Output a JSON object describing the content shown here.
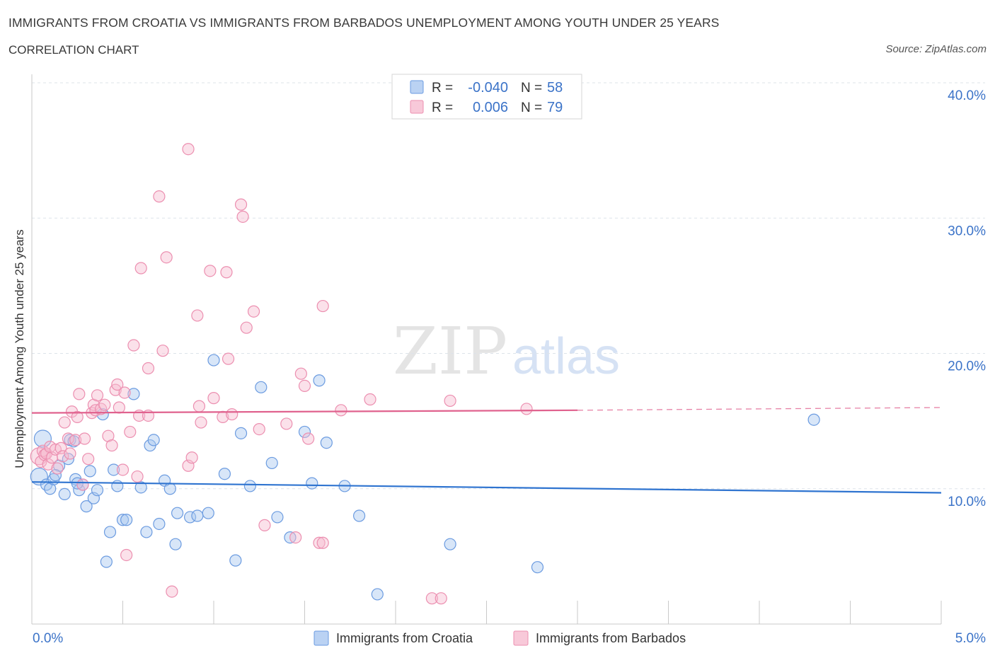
{
  "header": {
    "title": "IMMIGRANTS FROM CROATIA VS IMMIGRANTS FROM BARBADOS UNEMPLOYMENT AMONG YOUTH UNDER 25 YEARS",
    "subtitle": "CORRELATION CHART",
    "source": "Source: ZipAtlas.com"
  },
  "stats_box": {
    "rows": [
      {
        "r_label": "R =",
        "r_value": "-0.040",
        "n_label": "N =",
        "n_value": "58"
      },
      {
        "r_label": "R =",
        "r_value": "0.006",
        "n_label": "N =",
        "n_value": "79"
      }
    ]
  },
  "watermark": {
    "zip": "ZIP",
    "atlas": "atlas"
  },
  "colors": {
    "croatia_fill": "#a9c7f0",
    "croatia_stroke": "#6b9be0",
    "croatia_line": "#2f74d0",
    "barbados_fill": "#f6bcd0",
    "barbados_stroke": "#ec8fb0",
    "barbados_line": "#e0628e",
    "axis_text": "#3b73c8",
    "grid": "#dde3ea"
  },
  "chart_data": {
    "type": "scatter",
    "title": "IMMIGRANTS FROM CROATIA VS IMMIGRANTS FROM BARBADOS UNEMPLOYMENT AMONG YOUTH UNDER 25 YEARS",
    "xlabel": "",
    "ylabel": "Unemployment Among Youth under 25 years",
    "xlim": [
      0,
      5
    ],
    "ylim": [
      0,
      40
    ],
    "x_tick_labels": [
      "0.0%",
      "5.0%"
    ],
    "y_tick_labels": [
      "10.0%",
      "20.0%",
      "30.0%",
      "40.0%"
    ],
    "y_ticks": [
      10,
      20,
      30,
      40
    ],
    "grid": true,
    "legend_position": "bottom",
    "series": [
      {
        "name": "Immigrants from Croatia",
        "R": -0.04,
        "N": 58,
        "trend": {
          "x": [
            0,
            5
          ],
          "y": [
            10.5,
            9.7
          ]
        },
        "points": [
          {
            "x": 0.04,
            "y": 10.9,
            "big": true
          },
          {
            "x": 0.06,
            "y": 13.7,
            "big": true
          },
          {
            "x": 0.08,
            "y": 10.3
          },
          {
            "x": 0.1,
            "y": 10.0
          },
          {
            "x": 0.12,
            "y": 10.7
          },
          {
            "x": 0.15,
            "y": 11.7
          },
          {
            "x": 0.18,
            "y": 9.6
          },
          {
            "x": 0.2,
            "y": 12.2
          },
          {
            "x": 0.21,
            "y": 13.6
          },
          {
            "x": 0.23,
            "y": 13.5
          },
          {
            "x": 0.24,
            "y": 10.7
          },
          {
            "x": 0.26,
            "y": 9.9
          },
          {
            "x": 0.28,
            "y": 10.3
          },
          {
            "x": 0.3,
            "y": 8.7
          },
          {
            "x": 0.32,
            "y": 11.3
          },
          {
            "x": 0.34,
            "y": 9.3
          },
          {
            "x": 0.36,
            "y": 9.9
          },
          {
            "x": 0.39,
            "y": 15.5
          },
          {
            "x": 0.41,
            "y": 4.6
          },
          {
            "x": 0.43,
            "y": 6.8
          },
          {
            "x": 0.45,
            "y": 11.4
          },
          {
            "x": 0.47,
            "y": 10.2
          },
          {
            "x": 0.5,
            "y": 7.7
          },
          {
            "x": 0.52,
            "y": 7.7
          },
          {
            "x": 0.56,
            "y": 17.0
          },
          {
            "x": 0.6,
            "y": 10.1
          },
          {
            "x": 0.63,
            "y": 6.8
          },
          {
            "x": 0.65,
            "y": 13.2
          },
          {
            "x": 0.67,
            "y": 13.6
          },
          {
            "x": 0.7,
            "y": 7.4
          },
          {
            "x": 0.73,
            "y": 10.6
          },
          {
            "x": 0.76,
            "y": 10.0
          },
          {
            "x": 0.79,
            "y": 5.9
          },
          {
            "x": 0.8,
            "y": 8.2
          },
          {
            "x": 0.87,
            "y": 7.9
          },
          {
            "x": 0.91,
            "y": 8.0
          },
          {
            "x": 0.97,
            "y": 8.2
          },
          {
            "x": 1.0,
            "y": 19.5
          },
          {
            "x": 1.06,
            "y": 11.1
          },
          {
            "x": 1.12,
            "y": 4.7
          },
          {
            "x": 1.15,
            "y": 14.1
          },
          {
            "x": 1.2,
            "y": 10.2
          },
          {
            "x": 1.26,
            "y": 17.5
          },
          {
            "x": 1.32,
            "y": 11.9
          },
          {
            "x": 1.35,
            "y": 7.9
          },
          {
            "x": 1.42,
            "y": 6.4
          },
          {
            "x": 1.5,
            "y": 14.2
          },
          {
            "x": 1.54,
            "y": 10.4
          },
          {
            "x": 1.58,
            "y": 18.0
          },
          {
            "x": 1.62,
            "y": 13.4
          },
          {
            "x": 1.72,
            "y": 10.2
          },
          {
            "x": 1.8,
            "y": 8.0
          },
          {
            "x": 1.9,
            "y": 2.2
          },
          {
            "x": 2.3,
            "y": 5.9
          },
          {
            "x": 2.78,
            "y": 4.2
          },
          {
            "x": 4.3,
            "y": 15.1
          },
          {
            "x": 0.25,
            "y": 10.4
          },
          {
            "x": 0.13,
            "y": 11.0
          }
        ]
      },
      {
        "name": "Immigrants from Barbados",
        "R": 0.006,
        "N": 79,
        "trend": {
          "x": [
            0,
            3.0
          ],
          "y": [
            15.6,
            15.8
          ]
        },
        "trend_dashed": {
          "x": [
            3.0,
            5.0
          ],
          "y": [
            15.8,
            16.0
          ]
        },
        "points": [
          {
            "x": 0.04,
            "y": 12.4,
            "big": true
          },
          {
            "x": 0.05,
            "y": 12.0
          },
          {
            "x": 0.06,
            "y": 12.8
          },
          {
            "x": 0.07,
            "y": 12.5
          },
          {
            "x": 0.08,
            "y": 12.6
          },
          {
            "x": 0.09,
            "y": 11.8
          },
          {
            "x": 0.1,
            "y": 13.1
          },
          {
            "x": 0.11,
            "y": 12.3
          },
          {
            "x": 0.13,
            "y": 12.9
          },
          {
            "x": 0.14,
            "y": 11.5
          },
          {
            "x": 0.16,
            "y": 13.0
          },
          {
            "x": 0.17,
            "y": 12.4
          },
          {
            "x": 0.18,
            "y": 14.9
          },
          {
            "x": 0.2,
            "y": 13.7
          },
          {
            "x": 0.21,
            "y": 12.6
          },
          {
            "x": 0.22,
            "y": 15.7
          },
          {
            "x": 0.24,
            "y": 13.6
          },
          {
            "x": 0.25,
            "y": 15.3
          },
          {
            "x": 0.26,
            "y": 17.0
          },
          {
            "x": 0.28,
            "y": 10.3
          },
          {
            "x": 0.29,
            "y": 13.7
          },
          {
            "x": 0.31,
            "y": 12.2
          },
          {
            "x": 0.33,
            "y": 15.6
          },
          {
            "x": 0.34,
            "y": 16.2
          },
          {
            "x": 0.35,
            "y": 15.8
          },
          {
            "x": 0.36,
            "y": 16.9
          },
          {
            "x": 0.38,
            "y": 15.9
          },
          {
            "x": 0.4,
            "y": 16.2
          },
          {
            "x": 0.42,
            "y": 13.9
          },
          {
            "x": 0.44,
            "y": 13.2
          },
          {
            "x": 0.46,
            "y": 17.3
          },
          {
            "x": 0.47,
            "y": 17.7
          },
          {
            "x": 0.48,
            "y": 16.0
          },
          {
            "x": 0.5,
            "y": 11.4
          },
          {
            "x": 0.51,
            "y": 17.1
          },
          {
            "x": 0.52,
            "y": 5.1
          },
          {
            "x": 0.54,
            "y": 14.2
          },
          {
            "x": 0.56,
            "y": 20.6
          },
          {
            "x": 0.58,
            "y": 10.9
          },
          {
            "x": 0.59,
            "y": 15.4
          },
          {
            "x": 0.6,
            "y": 26.3
          },
          {
            "x": 0.64,
            "y": 18.9
          },
          {
            "x": 0.64,
            "y": 15.4
          },
          {
            "x": 0.7,
            "y": 31.6
          },
          {
            "x": 0.72,
            "y": 20.2
          },
          {
            "x": 0.74,
            "y": 27.1
          },
          {
            "x": 0.77,
            "y": 2.4
          },
          {
            "x": 0.86,
            "y": 35.1
          },
          {
            "x": 0.86,
            "y": 11.7
          },
          {
            "x": 0.88,
            "y": 12.3
          },
          {
            "x": 0.91,
            "y": 22.8
          },
          {
            "x": 0.92,
            "y": 16.1
          },
          {
            "x": 0.93,
            "y": 14.9
          },
          {
            "x": 0.98,
            "y": 26.1
          },
          {
            "x": 1.0,
            "y": 16.7
          },
          {
            "x": 1.05,
            "y": 15.3
          },
          {
            "x": 1.07,
            "y": 26.0
          },
          {
            "x": 1.08,
            "y": 19.6
          },
          {
            "x": 1.1,
            "y": 15.5
          },
          {
            "x": 1.15,
            "y": 31.0
          },
          {
            "x": 1.16,
            "y": 30.1
          },
          {
            "x": 1.18,
            "y": 21.9
          },
          {
            "x": 1.22,
            "y": 23.1
          },
          {
            "x": 1.25,
            "y": 14.4
          },
          {
            "x": 1.28,
            "y": 7.3
          },
          {
            "x": 1.4,
            "y": 14.8
          },
          {
            "x": 1.45,
            "y": 6.4
          },
          {
            "x": 1.48,
            "y": 18.5
          },
          {
            "x": 1.5,
            "y": 17.6
          },
          {
            "x": 1.52,
            "y": 13.7
          },
          {
            "x": 1.58,
            "y": 6.0
          },
          {
            "x": 1.6,
            "y": 6.0
          },
          {
            "x": 1.6,
            "y": 23.5
          },
          {
            "x": 1.7,
            "y": 15.8
          },
          {
            "x": 1.86,
            "y": 16.6
          },
          {
            "x": 2.2,
            "y": 1.9
          },
          {
            "x": 2.25,
            "y": 1.9
          },
          {
            "x": 2.3,
            "y": 16.5
          },
          {
            "x": 2.72,
            "y": 15.9
          }
        ]
      }
    ]
  }
}
